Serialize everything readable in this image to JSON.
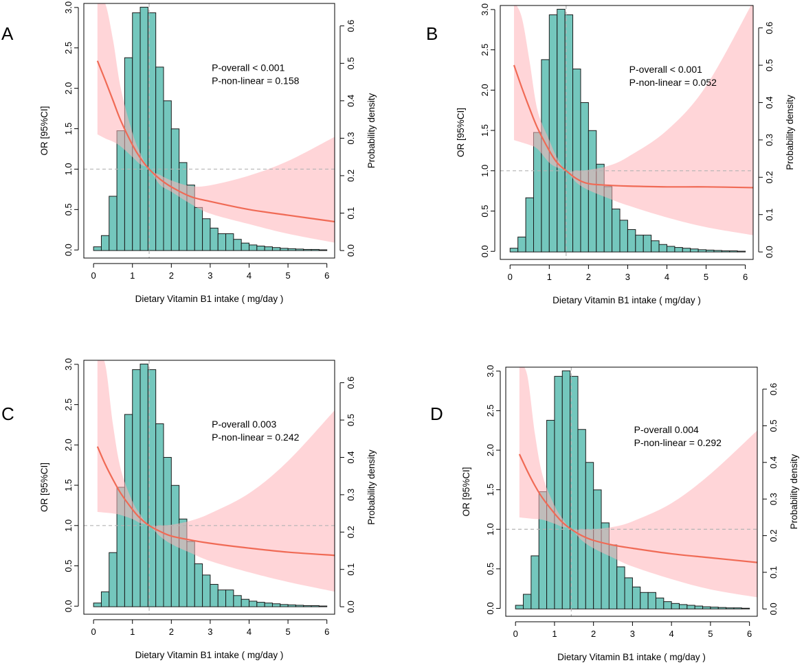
{
  "figure": {
    "shared": {
      "histogram_bin_width": 0.2,
      "histogram_bin_start": 0,
      "histogram_density": [
        0.01,
        0.04,
        0.145,
        0.32,
        0.515,
        0.635,
        0.65,
        0.635,
        0.49,
        0.4,
        0.325,
        0.235,
        0.175,
        0.115,
        0.085,
        0.06,
        0.045,
        0.045,
        0.03,
        0.02,
        0.015,
        0.012,
        0.01,
        0.008,
        0.006,
        0.005,
        0.004,
        0.003,
        0.003,
        0.002
      ],
      "reference_x": 1.43,
      "reference_or": 1.0,
      "colors": {
        "bar_fill": "#74c7bd",
        "bar_edge": "#1a1a1a",
        "line": "#f06a55",
        "band": "#ffb3b8",
        "ref": "#b4b4b4"
      }
    },
    "panels": [
      {
        "letter": "A",
        "annotation": {
          "p_overall": "P-overall < 0.001",
          "p_nonlinear": "P-non-linear = 0.158"
        }
      },
      {
        "letter": "B",
        "annotation": {
          "p_overall": "P-overall < 0.001",
          "p_nonlinear": "P-non-linear = 0.052"
        }
      },
      {
        "letter": "C",
        "annotation": {
          "p_overall": "P-overall 0.003",
          "p_nonlinear": "P-non-linear = 0.242"
        }
      },
      {
        "letter": "D",
        "annotation": {
          "p_overall": "P-overall 0.004",
          "p_nonlinear": "P-non-linear = 0.292"
        }
      }
    ]
  },
  "chart_data": [
    {
      "type": "line",
      "panel": "A",
      "xlabel": "Dietary Vitamin B1 intake ( mg/day )",
      "ylabel": "OR [95%CI]",
      "y2label": "Probability density",
      "xlim": [
        -0.25,
        6.2
      ],
      "ylim": [
        -0.1,
        3.05
      ],
      "y2lim": [
        -0.02,
        0.66
      ],
      "xticks": [
        "0",
        "1",
        "2",
        "3",
        "4",
        "5",
        "6"
      ],
      "yticks": [
        "0.0",
        "0.5",
        "1.0",
        "1.5",
        "2.0",
        "2.5",
        "3.0"
      ],
      "y2ticks": [
        "0.0",
        "0.1",
        "0.2",
        "0.3",
        "0.4",
        "0.5",
        "0.6"
      ],
      "series": [
        {
          "name": "OR",
          "x": [
            0.1,
            0.3,
            0.5,
            0.7,
            1.0,
            1.2,
            1.43,
            1.7,
            2.0,
            2.5,
            3.0,
            4.0,
            5.0,
            6.2
          ],
          "values": [
            2.34,
            2.1,
            1.85,
            1.6,
            1.3,
            1.14,
            1.0,
            0.88,
            0.78,
            0.66,
            0.6,
            0.5,
            0.43,
            0.35
          ]
        },
        {
          "name": "CI lower",
          "x": [
            0.1,
            0.3,
            0.5,
            0.7,
            1.0,
            1.2,
            1.43,
            1.7,
            2.0,
            2.5,
            3.0,
            4.0,
            5.0,
            6.2
          ],
          "values": [
            1.43,
            1.38,
            1.34,
            1.28,
            1.15,
            1.06,
            1.0,
            0.81,
            0.72,
            0.57,
            0.45,
            0.32,
            0.2,
            0.09
          ]
        },
        {
          "name": "CI upper",
          "x": [
            0.1,
            0.3,
            0.5,
            0.7,
            1.0,
            1.2,
            1.43,
            1.7,
            2.0,
            2.5,
            3.0,
            4.0,
            5.0,
            6.2
          ],
          "values": [
            3.1,
            3.05,
            2.6,
            2.0,
            1.45,
            1.2,
            1.0,
            0.93,
            0.86,
            0.79,
            0.8,
            0.92,
            1.1,
            1.4
          ]
        }
      ]
    },
    {
      "type": "line",
      "panel": "B",
      "xlabel": "Dietary Vitamin B1 intake ( mg/day )",
      "ylabel": "OR [95%CI]",
      "y2label": "Probability density",
      "xlim": [
        -0.25,
        6.2
      ],
      "ylim": [
        -0.1,
        3.05
      ],
      "y2lim": [
        -0.02,
        0.66
      ],
      "xticks": [
        "0",
        "1",
        "2",
        "3",
        "4",
        "5",
        "6"
      ],
      "yticks": [
        "0.0",
        "0.5",
        "1.0",
        "1.5",
        "2.0",
        "2.5",
        "3.0"
      ],
      "y2ticks": [
        "0.0",
        "0.1",
        "0.2",
        "0.3",
        "0.4",
        "0.5",
        "0.6"
      ],
      "series": [
        {
          "name": "OR",
          "x": [
            0.1,
            0.3,
            0.5,
            0.7,
            1.0,
            1.2,
            1.43,
            1.7,
            2.0,
            2.5,
            3.0,
            4.0,
            5.0,
            6.2
          ],
          "values": [
            2.31,
            2.03,
            1.77,
            1.53,
            1.25,
            1.1,
            1.0,
            0.9,
            0.84,
            0.82,
            0.81,
            0.8,
            0.8,
            0.79
          ]
        },
        {
          "name": "CI lower",
          "x": [
            0.1,
            0.3,
            0.5,
            0.7,
            1.0,
            1.2,
            1.43,
            1.7,
            2.0,
            2.5,
            3.0,
            4.0,
            5.0,
            6.2
          ],
          "values": [
            1.38,
            1.35,
            1.32,
            1.27,
            1.1,
            1.04,
            1.0,
            0.85,
            0.76,
            0.66,
            0.57,
            0.42,
            0.3,
            0.2
          ]
        },
        {
          "name": "CI upper",
          "x": [
            0.1,
            0.3,
            0.5,
            0.7,
            1.0,
            1.2,
            1.43,
            1.7,
            2.0,
            2.5,
            3.0,
            4.0,
            5.0,
            6.2
          ],
          "values": [
            3.1,
            2.9,
            2.35,
            1.75,
            1.38,
            1.16,
            1.0,
            1.0,
            1.01,
            1.06,
            1.17,
            1.5,
            2.05,
            3.1
          ]
        }
      ]
    },
    {
      "type": "line",
      "panel": "C",
      "xlabel": "Dietary Vitamin B1 intake ( mg/day )",
      "ylabel": "OR [95%CI]",
      "y2label": "Probability density",
      "xlim": [
        -0.25,
        6.2
      ],
      "ylim": [
        -0.1,
        3.05
      ],
      "y2lim": [
        -0.02,
        0.66
      ],
      "xticks": [
        "0",
        "1",
        "2",
        "3",
        "4",
        "5",
        "6"
      ],
      "yticks": [
        "0.0",
        "0.5",
        "1.0",
        "1.5",
        "2.0",
        "2.5",
        "3.0"
      ],
      "y2ticks": [
        "0.0",
        "0.1",
        "0.2",
        "0.3",
        "0.4",
        "0.5",
        "0.6"
      ],
      "series": [
        {
          "name": "OR",
          "x": [
            0.1,
            0.3,
            0.5,
            0.7,
            1.0,
            1.2,
            1.43,
            1.7,
            2.0,
            2.5,
            3.0,
            4.0,
            5.0,
            6.2
          ],
          "values": [
            1.98,
            1.76,
            1.57,
            1.4,
            1.2,
            1.09,
            1.0,
            0.93,
            0.87,
            0.82,
            0.78,
            0.72,
            0.67,
            0.63
          ]
        },
        {
          "name": "CI lower",
          "x": [
            0.1,
            0.3,
            0.5,
            0.7,
            1.0,
            1.2,
            1.43,
            1.7,
            2.0,
            2.5,
            3.0,
            4.0,
            5.0,
            6.2
          ],
          "values": [
            1.17,
            1.16,
            1.15,
            1.13,
            1.08,
            1.03,
            1.0,
            0.87,
            0.77,
            0.66,
            0.56,
            0.42,
            0.3,
            0.18
          ]
        },
        {
          "name": "CI upper",
          "x": [
            0.1,
            0.3,
            0.5,
            0.7,
            1.0,
            1.2,
            1.43,
            1.7,
            2.0,
            2.5,
            3.0,
            4.0,
            5.0,
            6.2
          ],
          "values": [
            3.1,
            3.0,
            2.25,
            1.7,
            1.3,
            1.14,
            1.0,
            1.0,
            1.01,
            1.06,
            1.15,
            1.4,
            1.8,
            2.43
          ]
        }
      ]
    },
    {
      "type": "line",
      "panel": "D",
      "xlabel": "Dietary Vitamin B1 intake ( mg/day )",
      "ylabel": "OR [95%CI]",
      "y2label": "Probability density",
      "xlim": [
        -0.25,
        6.2
      ],
      "ylim": [
        -0.1,
        3.05
      ],
      "y2lim": [
        -0.02,
        0.66
      ],
      "xticks": [
        "0",
        "1",
        "2",
        "3",
        "4",
        "5",
        "6"
      ],
      "yticks": [
        "0.0",
        "0.5",
        "1.0",
        "1.5",
        "2.0",
        "2.5",
        "3.0"
      ],
      "y2ticks": [
        "0.0",
        "0.1",
        "0.2",
        "0.3",
        "0.4",
        "0.5",
        "0.6"
      ],
      "series": [
        {
          "name": "OR",
          "x": [
            0.1,
            0.3,
            0.5,
            0.7,
            1.0,
            1.2,
            1.43,
            1.7,
            2.0,
            2.5,
            3.0,
            4.0,
            5.0,
            6.2
          ],
          "values": [
            1.95,
            1.74,
            1.55,
            1.39,
            1.2,
            1.09,
            1.0,
            0.92,
            0.86,
            0.8,
            0.76,
            0.69,
            0.64,
            0.58
          ]
        },
        {
          "name": "CI lower",
          "x": [
            0.1,
            0.3,
            0.5,
            0.7,
            1.0,
            1.2,
            1.43,
            1.7,
            2.0,
            2.5,
            3.0,
            4.0,
            5.0,
            6.2
          ],
          "values": [
            1.15,
            1.14,
            1.13,
            1.12,
            1.07,
            1.03,
            1.0,
            0.86,
            0.76,
            0.64,
            0.53,
            0.37,
            0.24,
            0.14
          ]
        },
        {
          "name": "CI upper",
          "x": [
            0.1,
            0.3,
            0.5,
            0.7,
            1.0,
            1.2,
            1.43,
            1.7,
            2.0,
            2.5,
            3.0,
            4.0,
            5.0,
            6.2
          ],
          "values": [
            3.1,
            2.95,
            2.2,
            1.67,
            1.3,
            1.14,
            1.0,
            1.0,
            1.0,
            1.03,
            1.1,
            1.33,
            1.7,
            2.25
          ]
        }
      ]
    }
  ]
}
